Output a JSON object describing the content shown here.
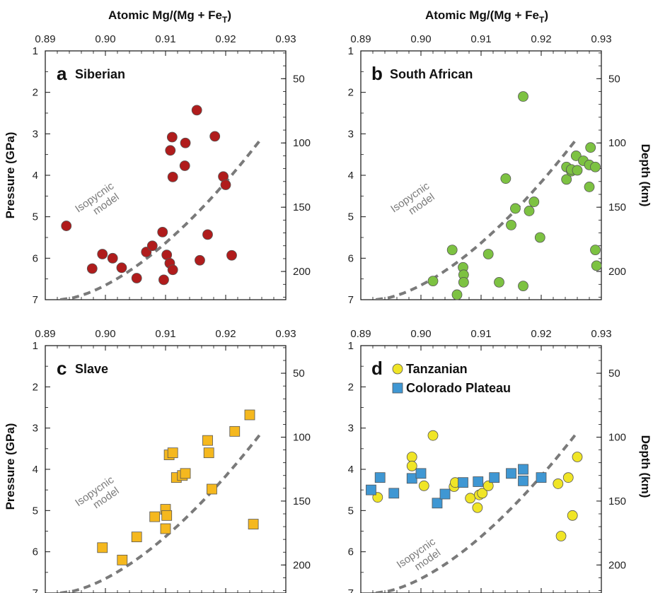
{
  "figure": {
    "top_axis_title": "Atomic Mg/(Mg + Fe",
    "top_axis_title_sub": "T",
    "top_axis_title_close": ")",
    "left_axis_title": "Pressure (GPa)",
    "right_axis_title": "Depth (km)",
    "model_label_line1": "Isopycnic",
    "model_label_line2": "model",
    "colors": {
      "siberian": "#b01c1c",
      "south_african": "#7dc242",
      "slave": "#f5b81e",
      "tanzanian": "#f0e526",
      "colorado": "#3f97d3",
      "model": "#7a7a7a"
    }
  },
  "chart_data": [
    {
      "type": "scatter",
      "panel": "a",
      "label": "Siberian",
      "xlabel": "Atomic Mg/(Mg + FeT)",
      "ylabel": "Pressure (GPa)",
      "y2label": "Depth (km)",
      "xlim": [
        0.89,
        0.93
      ],
      "ylim": [
        7,
        1
      ],
      "xticks": [
        0.89,
        0.9,
        0.91,
        0.92,
        0.93
      ],
      "yticks": [
        1,
        2,
        3,
        4,
        5,
        6,
        7
      ],
      "y2ticks": [
        50,
        100,
        150,
        200
      ],
      "series": [
        {
          "name": "Siberian",
          "marker": "circle",
          "color": "#b01c1c",
          "points": [
            [
              0.8935,
              5.22
            ],
            [
              0.8978,
              6.25
            ],
            [
              0.8995,
              5.9
            ],
            [
              0.9012,
              6.0
            ],
            [
              0.9027,
              6.23
            ],
            [
              0.9052,
              6.48
            ],
            [
              0.9068,
              5.85
            ],
            [
              0.9078,
              5.7
            ],
            [
              0.9095,
              5.37
            ],
            [
              0.9097,
              6.52
            ],
            [
              0.9102,
              5.92
            ],
            [
              0.9107,
              6.12
            ],
            [
              0.9112,
              6.28
            ],
            [
              0.9108,
              3.4
            ],
            [
              0.9111,
              3.08
            ],
            [
              0.9112,
              4.04
            ],
            [
              0.9133,
              3.22
            ],
            [
              0.9132,
              3.77
            ],
            [
              0.9152,
              2.43
            ],
            [
              0.9157,
              6.05
            ],
            [
              0.917,
              5.43
            ],
            [
              0.9182,
              3.06
            ],
            [
              0.9196,
              4.03
            ],
            [
              0.92,
              4.23
            ],
            [
              0.921,
              5.93
            ]
          ]
        }
      ]
    },
    {
      "type": "scatter",
      "panel": "b",
      "label": "South African",
      "xlabel": "Atomic Mg/(Mg + FeT)",
      "ylabel": "",
      "y2label": "Depth (km)",
      "xlim": [
        0.89,
        0.93
      ],
      "ylim": [
        7,
        1
      ],
      "xticks": [
        0.89,
        0.9,
        0.91,
        0.92,
        0.93
      ],
      "yticks": [
        1,
        2,
        3,
        4,
        5,
        6,
        7
      ],
      "y2ticks": [
        50,
        100,
        150,
        200
      ],
      "series": [
        {
          "name": "South African",
          "marker": "circle",
          "color": "#7dc242",
          "points": [
            [
              0.902,
              6.55
            ],
            [
              0.9052,
              5.8
            ],
            [
              0.906,
              6.88
            ],
            [
              0.907,
              6.22
            ],
            [
              0.9071,
              6.4
            ],
            [
              0.9071,
              6.58
            ],
            [
              0.9112,
              5.9
            ],
            [
              0.913,
              6.58
            ],
            [
              0.9141,
              4.08
            ],
            [
              0.915,
              5.2
            ],
            [
              0.9157,
              4.8
            ],
            [
              0.917,
              2.1
            ],
            [
              0.917,
              6.67
            ],
            [
              0.918,
              4.86
            ],
            [
              0.9188,
              4.64
            ],
            [
              0.9198,
              5.5
            ],
            [
              0.9242,
              4.1
            ],
            [
              0.9242,
              3.8
            ],
            [
              0.925,
              3.9
            ],
            [
              0.925,
              3.86
            ],
            [
              0.9258,
              3.53
            ],
            [
              0.926,
              3.88
            ],
            [
              0.927,
              3.65
            ],
            [
              0.928,
              3.75
            ],
            [
              0.9282,
              3.33
            ],
            [
              0.928,
              4.28
            ],
            [
              0.929,
              3.8
            ],
            [
              0.929,
              5.8
            ],
            [
              0.9292,
              6.18
            ]
          ]
        }
      ]
    },
    {
      "type": "scatter",
      "panel": "c",
      "label": "Slave",
      "xlabel": "",
      "ylabel": "Pressure (GPa)",
      "y2label": "",
      "xlim": [
        0.89,
        0.93
      ],
      "ylim": [
        7,
        1
      ],
      "xticks": [
        0.89,
        0.9,
        0.91,
        0.92,
        0.93
      ],
      "yticks": [
        1,
        2,
        3,
        4,
        5,
        6,
        7
      ],
      "y2ticks": [
        50,
        100,
        150,
        200
      ],
      "series": [
        {
          "name": "Slave",
          "marker": "square",
          "color": "#f5b81e",
          "points": [
            [
              0.8995,
              5.9
            ],
            [
              0.9028,
              6.2
            ],
            [
              0.9052,
              5.64
            ],
            [
              0.9082,
              5.15
            ],
            [
              0.91,
              4.97
            ],
            [
              0.9102,
              5.12
            ],
            [
              0.91,
              5.44
            ],
            [
              0.9106,
              3.65
            ],
            [
              0.9112,
              3.6
            ],
            [
              0.9118,
              4.2
            ],
            [
              0.9128,
              4.15
            ],
            [
              0.9133,
              4.1
            ],
            [
              0.917,
              3.3
            ],
            [
              0.9172,
              3.6
            ],
            [
              0.9177,
              4.48
            ],
            [
              0.9215,
              3.08
            ],
            [
              0.924,
              2.68
            ],
            [
              0.9246,
              5.33
            ]
          ]
        }
      ]
    },
    {
      "type": "scatter",
      "panel": "d",
      "label": "",
      "xlabel": "",
      "ylabel": "",
      "y2label": "Depth (km)",
      "xlim": [
        0.89,
        0.93
      ],
      "ylim": [
        7,
        1
      ],
      "xticks": [
        0.89,
        0.9,
        0.91,
        0.92,
        0.93
      ],
      "yticks": [
        1,
        2,
        3,
        4,
        5,
        6,
        7
      ],
      "y2ticks": [
        50,
        100,
        150,
        200
      ],
      "legend": "top-left",
      "series": [
        {
          "name": "Tanzanian",
          "marker": "circle",
          "color": "#f0e526",
          "points": [
            [
              0.8928,
              4.68
            ],
            [
              0.8985,
              3.7
            ],
            [
              0.8985,
              3.92
            ],
            [
              0.9005,
              4.4
            ],
            [
              0.902,
              3.18
            ],
            [
              0.9055,
              4.42
            ],
            [
              0.9057,
              4.32
            ],
            [
              0.9082,
              4.7
            ],
            [
              0.9094,
              4.93
            ],
            [
              0.9097,
              4.62
            ],
            [
              0.9102,
              4.58
            ],
            [
              0.9112,
              4.4
            ],
            [
              0.9228,
              4.35
            ],
            [
              0.9233,
              5.62
            ],
            [
              0.9245,
              4.2
            ],
            [
              0.9252,
              5.12
            ],
            [
              0.926,
              3.7
            ]
          ]
        },
        {
          "name": "Colorado Plateau",
          "marker": "square",
          "color": "#3f97d3",
          "points": [
            [
              0.8917,
              4.5
            ],
            [
              0.8932,
              4.2
            ],
            [
              0.8955,
              4.58
            ],
            [
              0.8985,
              4.22
            ],
            [
              0.9,
              4.1
            ],
            [
              0.9027,
              4.82
            ],
            [
              0.904,
              4.6
            ],
            [
              0.907,
              4.32
            ],
            [
              0.9095,
              4.3
            ],
            [
              0.9122,
              4.2
            ],
            [
              0.915,
              4.1
            ],
            [
              0.917,
              4.0
            ],
            [
              0.917,
              4.28
            ],
            [
              0.92,
              4.2
            ]
          ]
        }
      ]
    }
  ]
}
